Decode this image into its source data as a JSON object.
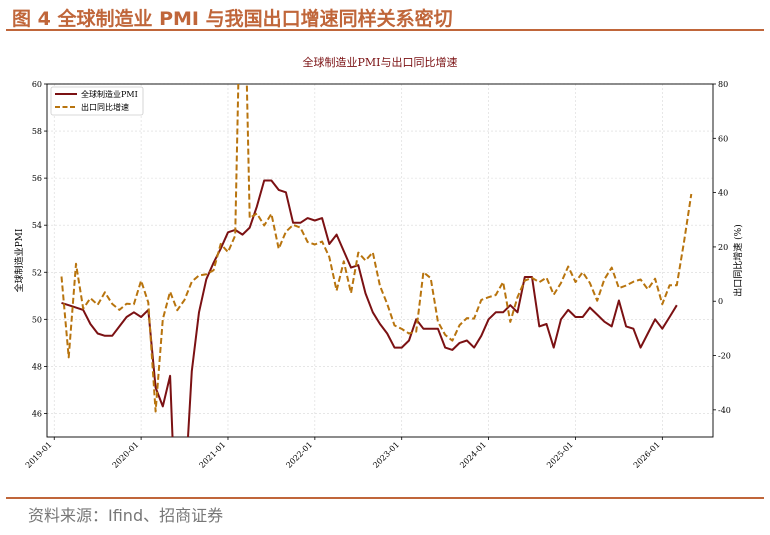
{
  "figure": {
    "title": "图 4 全球制造业 PMI 与我国出口增速同样关系密切",
    "source": "资料来源：Ifind、招商证券"
  },
  "colors": {
    "accent": "#c0663a",
    "pmi": "#7b1113",
    "export": "#b8740e"
  },
  "chart_data": {
    "type": "line",
    "title": "全球制造业PMI与出口同比增速",
    "ylabel": "全球制造业PMI",
    "y2label": "出口同比增速 (%)",
    "ylim": [
      45,
      60
    ],
    "y2lim": [
      -50,
      80
    ],
    "yticks": [
      46,
      48,
      50,
      52,
      54,
      56,
      58,
      60
    ],
    "y2ticks": [
      -40,
      -20,
      0,
      20,
      40,
      60,
      80
    ],
    "xlim": [
      "2018-12",
      "2026-08"
    ],
    "xticks": [
      "2019-01",
      "2020-01",
      "2021-01",
      "2022-01",
      "2023-01",
      "2024-01",
      "2025-01",
      "2026-01"
    ],
    "grid": true,
    "legend_position": "top-left",
    "series": [
      {
        "name": "全球制造业PMI",
        "axis": "left",
        "style": "solid",
        "start": "2019-02",
        "values": [
          50.7,
          50.6,
          50.5,
          50.4,
          49.8,
          49.4,
          49.3,
          49.3,
          49.7,
          50.1,
          50.3,
          50.1,
          50.4,
          47.1,
          46.3,
          47.6,
          39.8,
          42.4,
          47.8,
          50.3,
          51.7,
          52.4,
          53.0,
          53.7,
          53.8,
          53.6,
          53.9,
          54.8,
          55.9,
          55.9,
          55.5,
          55.4,
          54.1,
          54.1,
          54.3,
          54.2,
          54.3,
          53.2,
          53.6,
          52.9,
          52.2,
          52.3,
          51.1,
          50.3,
          49.8,
          49.4,
          48.8,
          48.8,
          49.1,
          50.0,
          49.6,
          49.6,
          49.6,
          48.8,
          48.7,
          49.0,
          49.1,
          48.8,
          49.3,
          50.0,
          50.3,
          50.3,
          50.6,
          50.3,
          51.8,
          51.8,
          49.7,
          49.8,
          48.8,
          50.0,
          50.4,
          50.1,
          50.1,
          50.5,
          50.2,
          49.9,
          49.7,
          50.8,
          49.7,
          49.6,
          48.8,
          49.4,
          50.0,
          49.6,
          50.1,
          50.6
        ]
      },
      {
        "name": "出口同比增速",
        "axis": "right",
        "style": "dashed",
        "start": "2019-02",
        "values": [
          9.1,
          -20.7,
          13.8,
          -2.7,
          1.1,
          -1.3,
          3.3,
          -1.0,
          -3.2,
          -0.9,
          -1.1,
          7.6,
          -0.5,
          -40.6,
          -6.6,
          3.5,
          -3.3,
          0.5,
          7.2,
          9.5,
          9.9,
          11.4,
          21.1,
          18.1,
          24.2,
          154.9,
          30.6,
          32.3,
          27.9,
          32.2,
          19.3,
          25.6,
          28.1,
          27.1,
          21.8,
          20.9,
          22.0,
          16.3,
          3.9,
          14.7,
          3.0,
          17.9,
          15.0,
          18.0,
          5.6,
          -1.0,
          -8.9,
          -10.2,
          -11.9,
          -11.2,
          10.7,
          8.5,
          -7.5,
          -12.4,
          -14.5,
          -8.8,
          -6.2,
          -6.4,
          0.5,
          1.5,
          2.3,
          7.1,
          -7.6,
          1.5,
          7.6,
          8.6,
          7.0,
          8.7,
          2.4,
          6.7,
          12.8,
          7.1,
          10.7,
          6.7,
          0.2,
          8.1,
          12.4,
          4.8,
          5.8,
          7.2,
          8.0,
          4.4,
          8.3,
          -1.1,
          5.9,
          5.9,
          21.8,
          39.5
        ]
      }
    ]
  }
}
